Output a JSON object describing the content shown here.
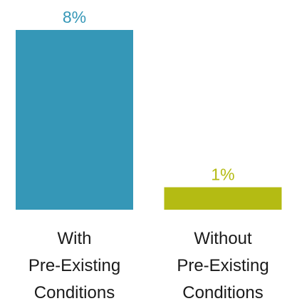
{
  "chart_data": {
    "type": "bar",
    "title": "",
    "xlabel": "",
    "ylabel": "",
    "categories": [
      {
        "lines": [
          "With",
          "Pre-Existing",
          "Conditions"
        ]
      },
      {
        "lines": [
          "Without",
          "Pre-Existing",
          "Conditions"
        ]
      }
    ],
    "values": [
      8,
      1
    ],
    "value_labels": [
      "8%",
      "1%"
    ],
    "bar_colors": [
      "#3597b7",
      "#b4bb13"
    ],
    "ylim": [
      0,
      8
    ],
    "grid": false,
    "legend": "none"
  }
}
